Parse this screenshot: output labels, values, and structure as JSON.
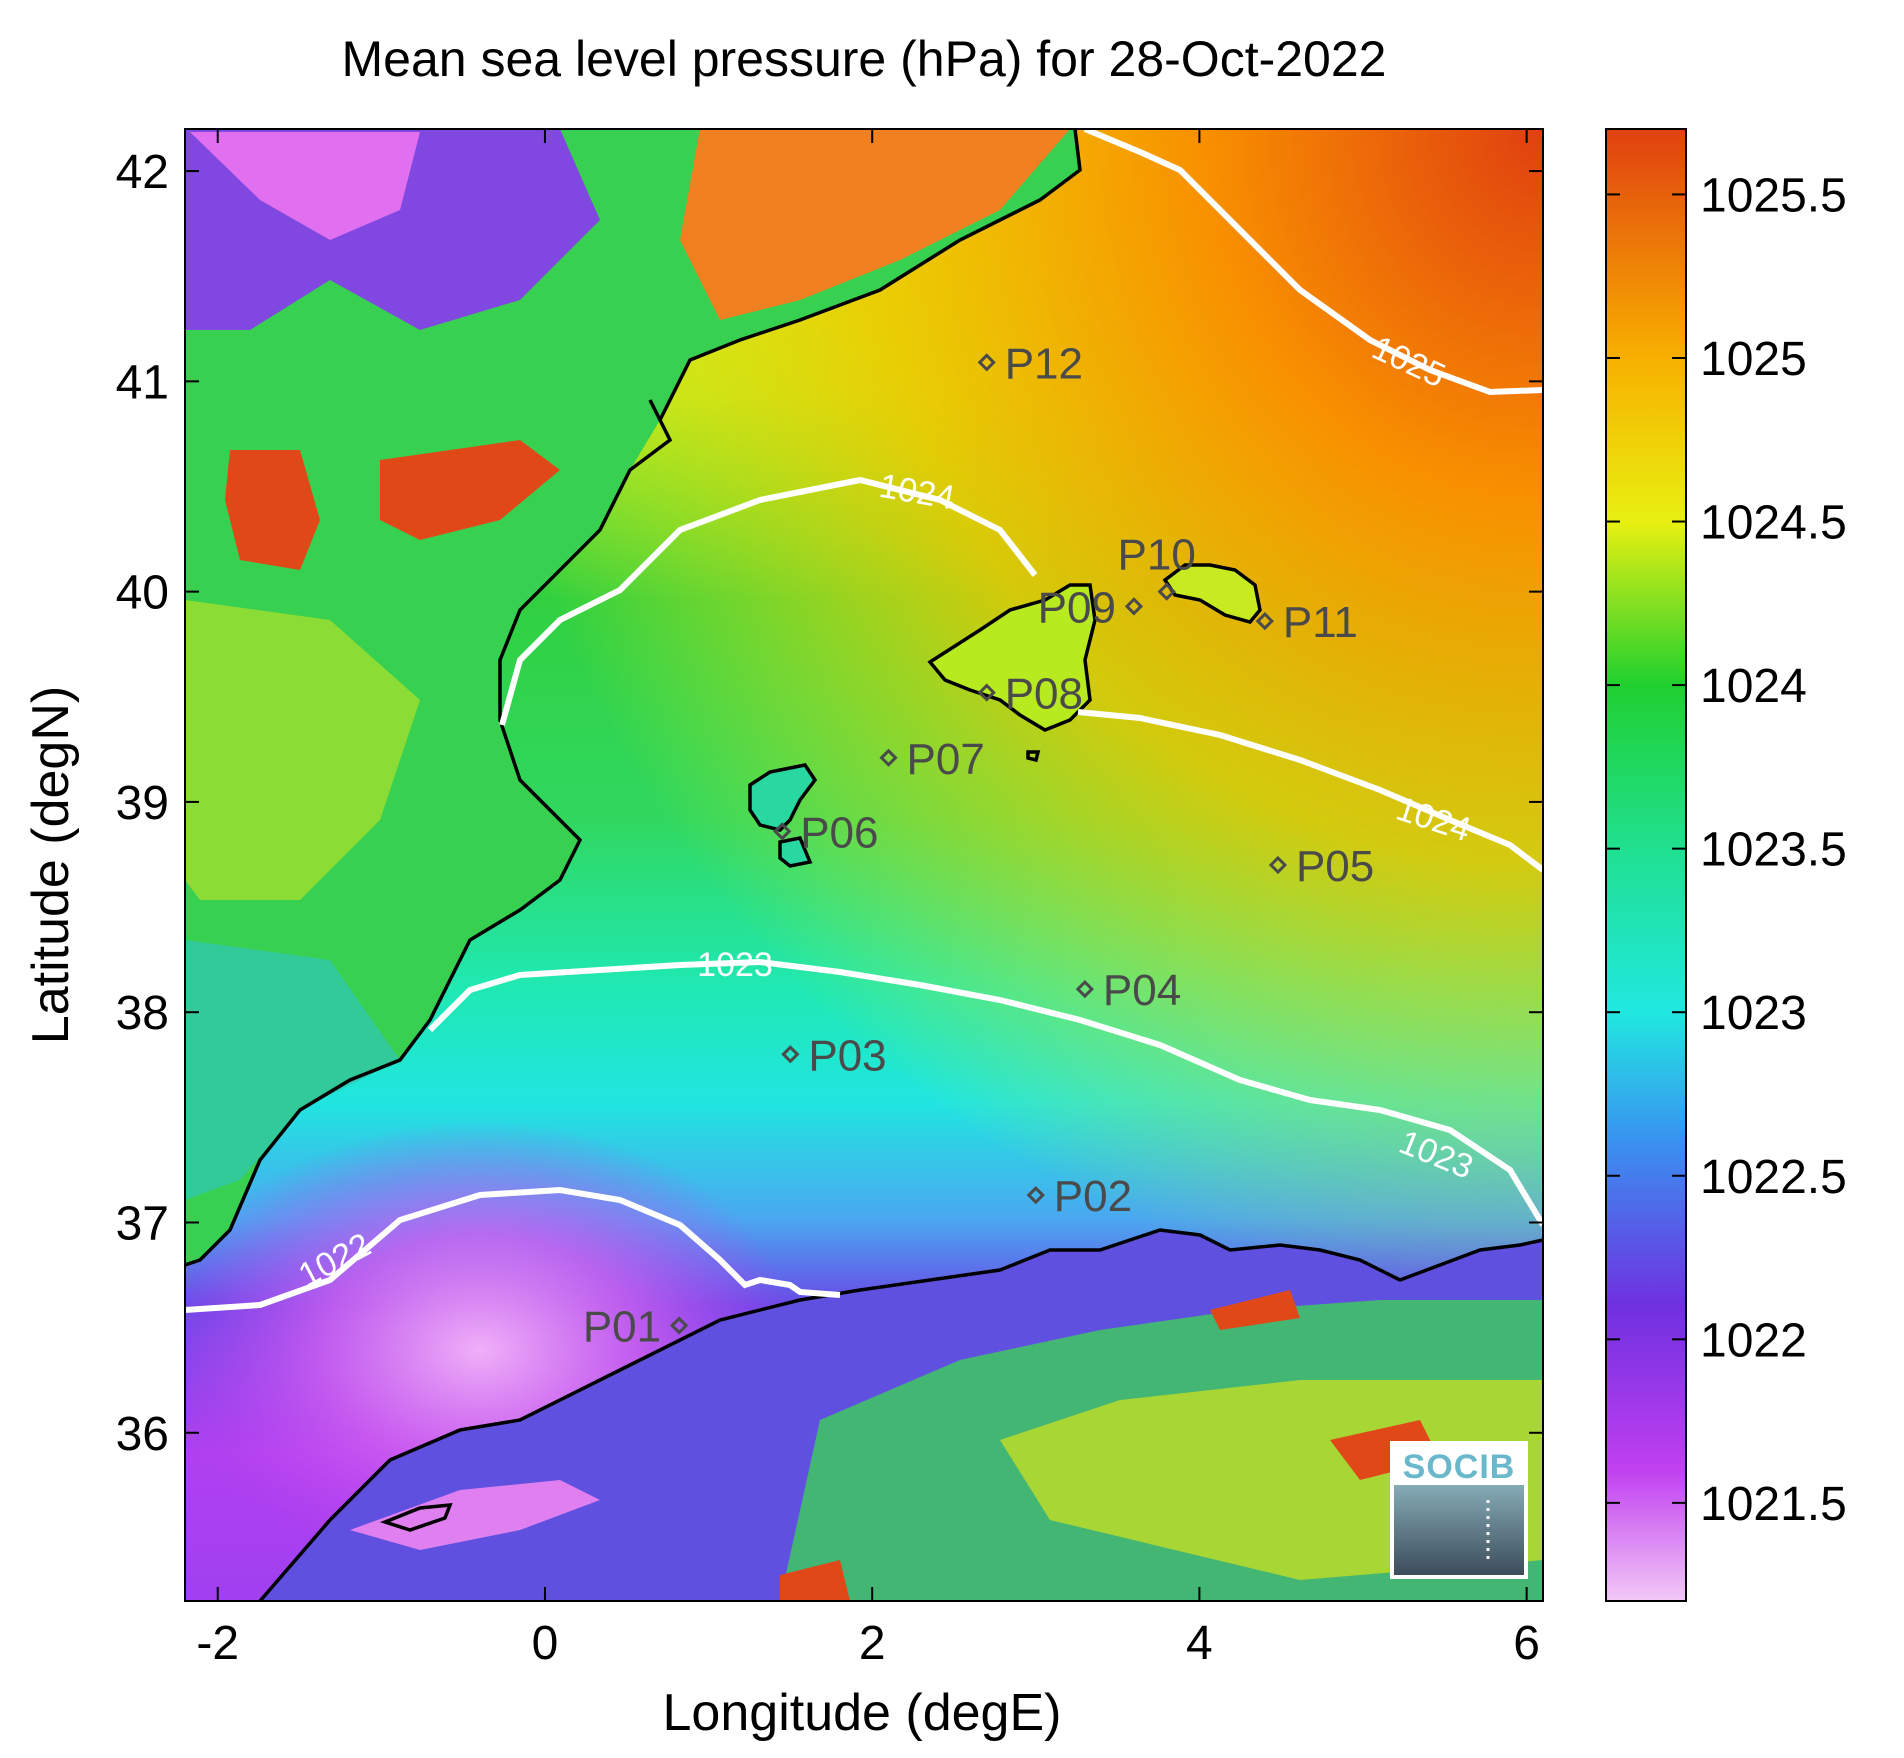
{
  "title": "Mean sea level pressure (hPa) for 28-Oct-2022",
  "x_axis": {
    "label": "Longitude (degE)",
    "range": [
      -2.2,
      6.1
    ],
    "ticks": [
      -2,
      0,
      2,
      4,
      6
    ],
    "tick_labels": [
      "-2",
      "0",
      "2",
      "4",
      "6"
    ]
  },
  "y_axis": {
    "label": "Latitude (degN)",
    "range": [
      35.2,
      42.2
    ],
    "ticks": [
      36,
      37,
      38,
      39,
      40,
      41,
      42
    ],
    "tick_labels": [
      "36",
      "37",
      "38",
      "39",
      "40",
      "41",
      "42"
    ]
  },
  "colorbar": {
    "range": [
      1021.2,
      1025.7
    ],
    "ticks": [
      1021.5,
      1022,
      1022.5,
      1023,
      1023.5,
      1024,
      1024.5,
      1025,
      1025.5
    ],
    "tick_labels": [
      "1021.5",
      "1022",
      "1022.5",
      "1023",
      "1023.5",
      "1024",
      "1024.5",
      "1025",
      "1025.5"
    ],
    "stops": [
      {
        "value": 1021.2,
        "color": "#f2c8f7"
      },
      {
        "value": 1021.6,
        "color": "#c040f0"
      },
      {
        "value": 1022.1,
        "color": "#7030e0"
      },
      {
        "value": 1022.6,
        "color": "#3a90f0"
      },
      {
        "value": 1023.0,
        "color": "#20e8e0"
      },
      {
        "value": 1023.5,
        "color": "#20e090"
      },
      {
        "value": 1024.0,
        "color": "#20d030"
      },
      {
        "value": 1024.5,
        "color": "#e8f010"
      },
      {
        "value": 1025.0,
        "color": "#f8b000"
      },
      {
        "value": 1025.7,
        "color": "#e04010"
      }
    ]
  },
  "contour_labels": [
    "1022",
    "1023",
    "1023",
    "1024",
    "1024",
    "1025"
  ],
  "stations": [
    {
      "id": "P01",
      "lon": 0.82,
      "lat": 36.51,
      "label_side": "left"
    },
    {
      "id": "P02",
      "lon": 3.0,
      "lat": 37.13,
      "label_side": "right"
    },
    {
      "id": "P03",
      "lon": 1.5,
      "lat": 37.8,
      "label_side": "right"
    },
    {
      "id": "P04",
      "lon": 3.3,
      "lat": 38.11,
      "label_side": "right"
    },
    {
      "id": "P05",
      "lon": 4.48,
      "lat": 38.7,
      "label_side": "right"
    },
    {
      "id": "P06",
      "lon": 1.45,
      "lat": 38.86,
      "label_side": "right"
    },
    {
      "id": "P07",
      "lon": 2.1,
      "lat": 39.21,
      "label_side": "right"
    },
    {
      "id": "P08",
      "lon": 2.7,
      "lat": 39.52,
      "label_side": "right"
    },
    {
      "id": "P09",
      "lon": 3.6,
      "lat": 39.93,
      "label_side": "left"
    },
    {
      "id": "P10",
      "lon": 3.8,
      "lat": 40.0,
      "label_side": "above"
    },
    {
      "id": "P11",
      "lon": 4.4,
      "lat": 39.86,
      "label_side": "right"
    },
    {
      "id": "P12",
      "lon": 2.7,
      "lat": 41.09,
      "label_side": "right"
    }
  ],
  "logo": {
    "text": "SOCIB"
  }
}
